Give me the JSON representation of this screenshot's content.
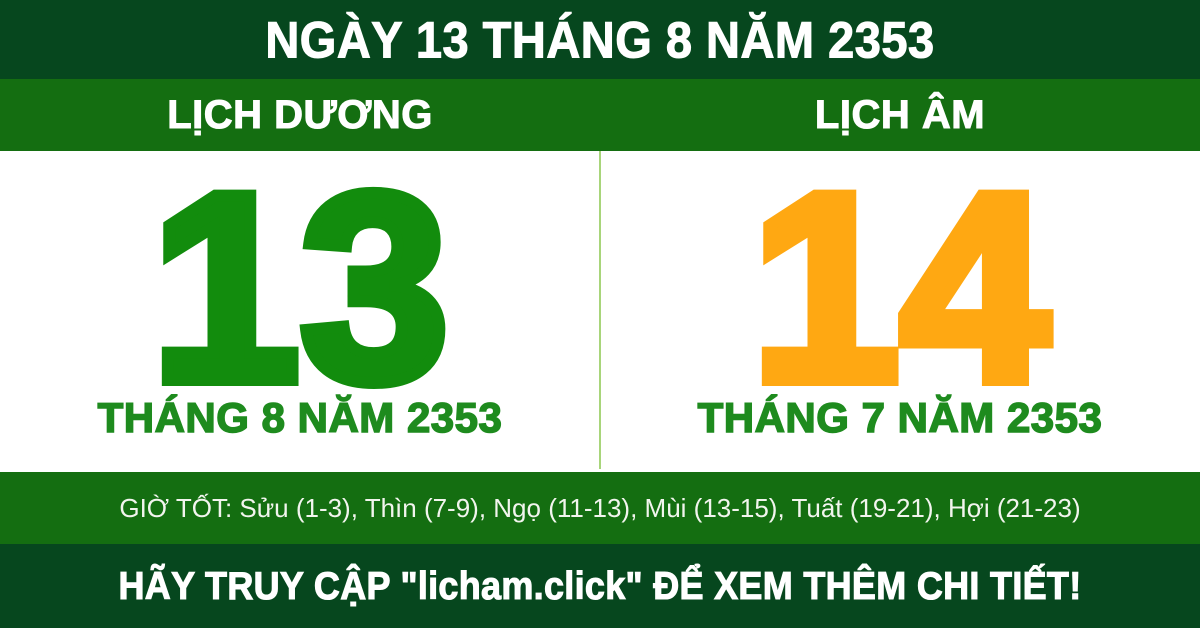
{
  "header": {
    "title": "NGÀY 13 THÁNG 8 NĂM 2353"
  },
  "solar": {
    "label": "LỊCH DƯƠNG",
    "day": "13",
    "month_line": "THÁNG 8 NĂM 2353"
  },
  "lunar": {
    "label": "LỊCH ÂM",
    "day": "14",
    "month_line": "THÁNG 7 NĂM 2353"
  },
  "good_hours": {
    "text": "GIỜ TỐT: Sửu (1-3), Thìn (7-9), Ngọ (11-13), Mùi (13-15), Tuất (19-21), Hợi (21-23)"
  },
  "footer": {
    "text": "HÃY TRUY CẬP \"licham.click\" ĐỂ XEM THÊM CHI TIẾT!"
  },
  "colors": {
    "dark_green": "#06471e",
    "medium_green": "#146e11",
    "solar_day": "#128c0d",
    "lunar_day": "#ffa812",
    "month_text": "#1e8b1e",
    "divider": "#a8d57a",
    "bar_text": "#f2f5ee"
  }
}
